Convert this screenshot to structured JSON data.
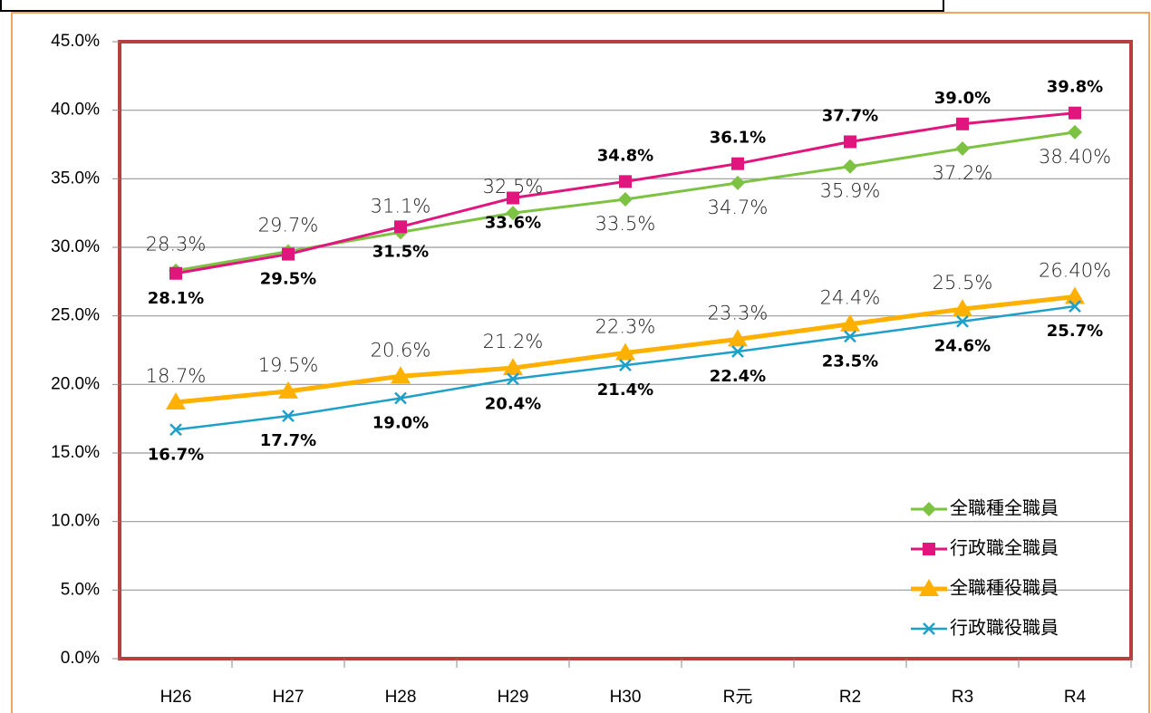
{
  "chart_data": {
    "type": "line",
    "categories": [
      "H26",
      "H27",
      "H28",
      "H29",
      "H30",
      "R元",
      "R2",
      "R3",
      "R4"
    ],
    "series": [
      {
        "name": "全職種全職員",
        "color": "#7dc243",
        "marker": "diamond",
        "values": [
          28.3,
          29.7,
          31.1,
          32.5,
          33.5,
          34.7,
          35.9,
          37.2,
          38.4
        ],
        "value_labels": [
          "28.3%",
          "29.7%",
          "31.1%",
          "32.5%",
          "33.5%",
          "34.7%",
          "35.9%",
          "37.2%",
          "38.40%"
        ]
      },
      {
        "name": "行政職全職員",
        "color": "#e0157e",
        "marker": "square",
        "values": [
          28.1,
          29.5,
          31.5,
          33.6,
          34.8,
          36.1,
          37.7,
          39.0,
          39.8
        ],
        "value_labels": [
          "28.1%",
          "29.5%",
          "31.5%",
          "33.6%",
          "34.8%",
          "36.1%",
          "37.7%",
          "39.0%",
          "39.8%"
        ]
      },
      {
        "name": "全職種役職員",
        "color": "#ffb000",
        "marker": "triangle",
        "values": [
          18.7,
          19.5,
          20.6,
          21.2,
          22.3,
          23.3,
          24.4,
          25.5,
          26.4
        ],
        "value_labels": [
          "18.7%",
          "19.5%",
          "20.6%",
          "21.2%",
          "22.3%",
          "23.3%",
          "24.4%",
          "25.5%",
          "26.40%"
        ]
      },
      {
        "name": "行政職役職員",
        "color": "#1ea0c8",
        "marker": "x",
        "values": [
          16.7,
          17.7,
          19.0,
          20.4,
          21.4,
          22.4,
          23.5,
          24.6,
          25.7
        ],
        "value_labels": [
          "16.7%",
          "17.7%",
          "19.0%",
          "20.4%",
          "21.4%",
          "22.4%",
          "23.5%",
          "24.6%",
          "25.7%"
        ]
      }
    ],
    "ylim": [
      0,
      45
    ],
    "yticks": [
      {
        "value": 0,
        "label": "0.0%"
      },
      {
        "value": 5,
        "label": "5.0%"
      },
      {
        "value": 10,
        "label": "10.0%"
      },
      {
        "value": 15,
        "label": "15.0%"
      },
      {
        "value": 20,
        "label": "20.0%"
      },
      {
        "value": 25,
        "label": "25.0%"
      },
      {
        "value": 30,
        "label": "30.0%"
      },
      {
        "value": 35,
        "label": "35.0%"
      },
      {
        "value": 40,
        "label": "40.0%"
      },
      {
        "value": 45,
        "label": "45.0%"
      }
    ],
    "grid": true,
    "legend": "lower right"
  }
}
